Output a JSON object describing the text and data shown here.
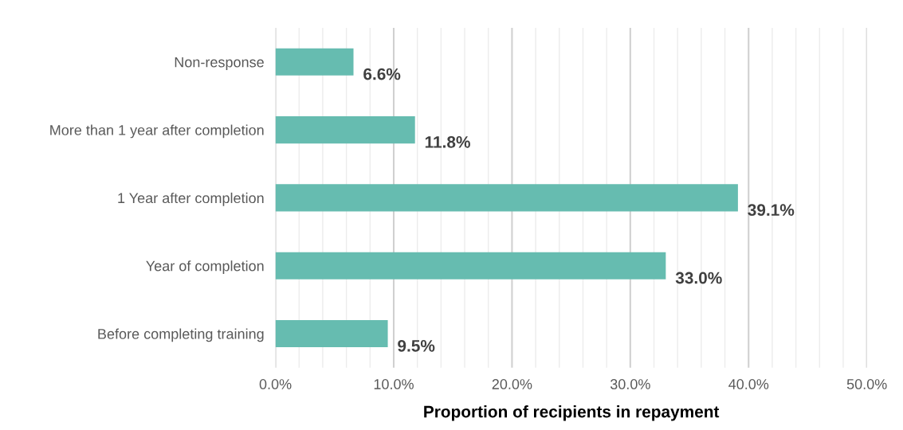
{
  "chart_data": {
    "type": "bar",
    "orientation": "horizontal",
    "xlabel": "Proportion of recipients in repayment",
    "categories": [
      "Non-response",
      "More than 1 year after completion",
      "1 Year after completion",
      "Year of completion",
      "Before completing training"
    ],
    "values": [
      6.6,
      11.8,
      39.1,
      33.0,
      9.5
    ],
    "value_labels": [
      "6.6%",
      "11.8%",
      "39.1%",
      "33.0%",
      "9.5%"
    ],
    "color": "#66bcb0",
    "xlim": [
      0,
      50
    ],
    "xticks": [
      {
        "value": 0,
        "label": "0.0%"
      },
      {
        "value": 2,
        "label": null
      },
      {
        "value": 4,
        "label": null
      },
      {
        "value": 6,
        "label": null
      },
      {
        "value": 8,
        "label": null
      },
      {
        "value": 10,
        "label": "10.0%"
      },
      {
        "value": 12,
        "label": null
      },
      {
        "value": 14,
        "label": null
      },
      {
        "value": 16,
        "label": null
      },
      {
        "value": 18,
        "label": null
      },
      {
        "value": 20,
        "label": "20.0%"
      },
      {
        "value": 22,
        "label": null
      },
      {
        "value": 24,
        "label": null
      },
      {
        "value": 26,
        "label": null
      },
      {
        "value": 28,
        "label": null
      },
      {
        "value": 30,
        "label": "30.0%"
      },
      {
        "value": 32,
        "label": null
      },
      {
        "value": 34,
        "label": null
      },
      {
        "value": 36,
        "label": null
      },
      {
        "value": 38,
        "label": null
      },
      {
        "value": 40,
        "label": "40.0%"
      },
      {
        "value": 42,
        "label": null
      },
      {
        "value": 44,
        "label": null
      },
      {
        "value": 46,
        "label": null
      },
      {
        "value": 48,
        "label": null
      },
      {
        "value": 50,
        "label": "50.0%"
      }
    ],
    "grid": "x",
    "legend": false
  }
}
